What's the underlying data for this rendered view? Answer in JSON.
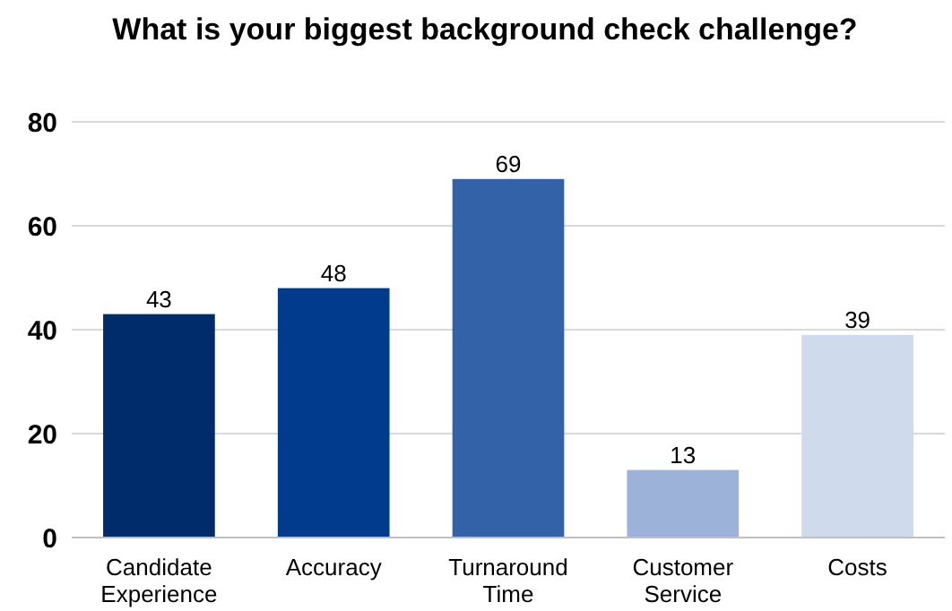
{
  "chart_data": {
    "type": "bar",
    "title": "What is your biggest background check challenge?",
    "categories": [
      "Candidate Experience",
      "Accuracy",
      "Turnaround Time",
      "Customer Service",
      "Costs"
    ],
    "values": [
      43,
      48,
      69,
      13,
      39
    ],
    "colors": [
      "#012c6b",
      "#003b8e",
      "#3462a8",
      "#9cb2d8",
      "#cfdaec"
    ],
    "ylim": [
      0,
      80
    ],
    "yticks": [
      0,
      20,
      40,
      60,
      80
    ],
    "grid": "y",
    "data_labels": true
  }
}
